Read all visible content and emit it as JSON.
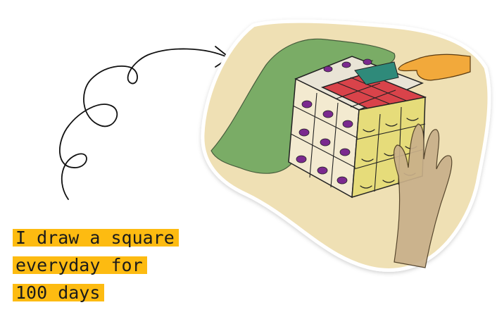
{
  "caption": {
    "line1": "I draw a square",
    "line2": "everyday for",
    "line3": "100 days"
  },
  "colors": {
    "highlight": "#fdbb11",
    "text": "#1b1b1b",
    "paper": "#efe0b4",
    "cube_top": "#d9434a",
    "cube_right": "#e6dc7a",
    "cube_left": "#f3ead0",
    "hand_green": "#6aa55c",
    "hand_orange": "#f2a93b",
    "hand_beige": "#c9b08a",
    "eye_purple": "#7b2a8f"
  },
  "icons": {
    "arrow": "curly-arrow-icon",
    "artwork": "cube-illustration"
  }
}
